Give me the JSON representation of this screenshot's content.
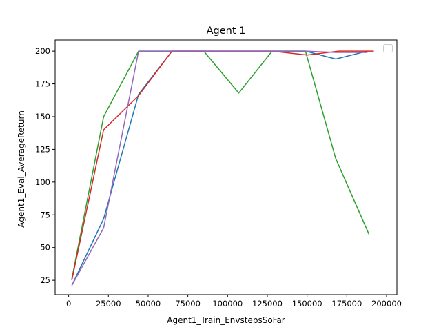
{
  "chart_data": {
    "type": "line",
    "title": "Agent 1",
    "xlabel": "Agent1_Train_EnvstepsSoFar",
    "ylabel": "Agent1_Eval_AverageReturn",
    "xlim": [
      -8500,
      206500
    ],
    "ylim": [
      14,
      208.5
    ],
    "xticks": [
      0,
      25000,
      50000,
      75000,
      100000,
      125000,
      150000,
      175000,
      200000
    ],
    "yticks": [
      25,
      50,
      75,
      100,
      125,
      150,
      175,
      200
    ],
    "xtick_labels": [
      "0",
      "25000",
      "50000",
      "75000",
      "100000",
      "125000",
      "150000",
      "175000",
      "200000"
    ],
    "ytick_labels": [
      "25",
      "50",
      "75",
      "100",
      "125",
      "150",
      "175",
      "200"
    ],
    "grid": false,
    "legend": {
      "placement": "top-right",
      "entries": []
    },
    "series": [
      {
        "color": "#1f77b4",
        "x": [
          2000,
          22000,
          44000,
          65000,
          85000,
          107000,
          128000,
          149000,
          168000,
          188000
        ],
        "y": [
          21,
          72,
          167,
          200,
          200,
          200,
          200,
          200,
          194,
          200
        ]
      },
      {
        "color": "#2ca02c",
        "x": [
          2000,
          22000,
          44000,
          65000,
          85000,
          107000,
          128000,
          149000,
          168000,
          189000
        ],
        "y": [
          26,
          150,
          200,
          200,
          200,
          168,
          200,
          200,
          118,
          60
        ]
      },
      {
        "color": "#d62728",
        "x": [
          2000,
          22000,
          44000,
          65000,
          85000,
          107000,
          128000,
          150000,
          170000,
          192000
        ],
        "y": [
          25,
          140,
          166,
          200,
          200,
          200,
          200,
          197,
          200,
          200
        ]
      },
      {
        "color": "#9467bd",
        "x": [
          2000,
          22000,
          44000,
          65000,
          85000,
          107000,
          128000,
          149000,
          168000,
          188000
        ],
        "y": [
          21,
          65,
          200,
          200,
          200,
          200,
          200,
          200,
          199,
          199
        ]
      }
    ]
  }
}
